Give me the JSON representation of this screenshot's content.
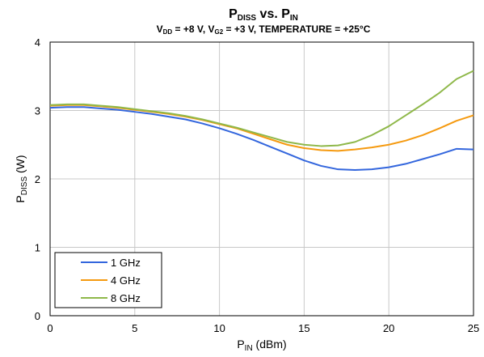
{
  "chart_data": {
    "type": "line",
    "title": {
      "p1": "P",
      "p1_sub": "DISS",
      "p2": " vs. P",
      "p2_sub": "IN"
    },
    "subtitle": {
      "s1": "V",
      "s1_sub": "DD",
      "s2": " = +8 V, V",
      "s2_sub": "G2",
      "s3": " = +3 V, TEMPERATURE = +25°C"
    },
    "xlabel": {
      "a": "P",
      "a_sub": "IN",
      "b": " (dBm)"
    },
    "ylabel": {
      "a": "P",
      "a_sub": "DISS",
      "b": " (W)"
    },
    "xlim": [
      0,
      25
    ],
    "ylim": [
      0,
      4
    ],
    "xticks": [
      0,
      5,
      10,
      15,
      20,
      25
    ],
    "yticks": [
      0,
      1,
      2,
      3,
      4
    ],
    "grid": true,
    "legend_position": "bottom-left",
    "series": [
      {
        "name": "1 GHz",
        "color": "#3366dd",
        "x": [
          0,
          1,
          2,
          3,
          4,
          5,
          6,
          7,
          8,
          9,
          10,
          11,
          12,
          13,
          14,
          15,
          16,
          17,
          18,
          19,
          20,
          21,
          22,
          23,
          24,
          25
        ],
        "y": [
          3.04,
          3.05,
          3.05,
          3.03,
          3.01,
          2.98,
          2.95,
          2.91,
          2.87,
          2.81,
          2.74,
          2.66,
          2.57,
          2.47,
          2.37,
          2.27,
          2.19,
          2.14,
          2.13,
          2.14,
          2.17,
          2.22,
          2.29,
          2.36,
          2.44,
          2.43
        ]
      },
      {
        "name": "4 GHz",
        "color": "#f59a10",
        "x": [
          0,
          1,
          2,
          3,
          4,
          5,
          6,
          7,
          8,
          9,
          10,
          11,
          12,
          13,
          14,
          15,
          16,
          17,
          18,
          19,
          20,
          21,
          22,
          23,
          24,
          25
        ],
        "y": [
          3.07,
          3.08,
          3.08,
          3.06,
          3.04,
          3.01,
          2.98,
          2.95,
          2.91,
          2.86,
          2.8,
          2.74,
          2.66,
          2.58,
          2.5,
          2.45,
          2.42,
          2.41,
          2.43,
          2.46,
          2.5,
          2.56,
          2.64,
          2.74,
          2.85,
          2.93
        ]
      },
      {
        "name": "8 GHz",
        "color": "#8fb84a",
        "x": [
          0,
          1,
          2,
          3,
          4,
          5,
          6,
          7,
          8,
          9,
          10,
          11,
          12,
          13,
          14,
          15,
          16,
          17,
          18,
          19,
          20,
          21,
          22,
          23,
          24,
          25
        ],
        "y": [
          3.08,
          3.09,
          3.09,
          3.07,
          3.05,
          3.02,
          2.99,
          2.96,
          2.92,
          2.87,
          2.81,
          2.75,
          2.68,
          2.61,
          2.54,
          2.5,
          2.48,
          2.49,
          2.54,
          2.64,
          2.77,
          2.93,
          3.09,
          3.26,
          3.46,
          3.58
        ]
      }
    ]
  }
}
